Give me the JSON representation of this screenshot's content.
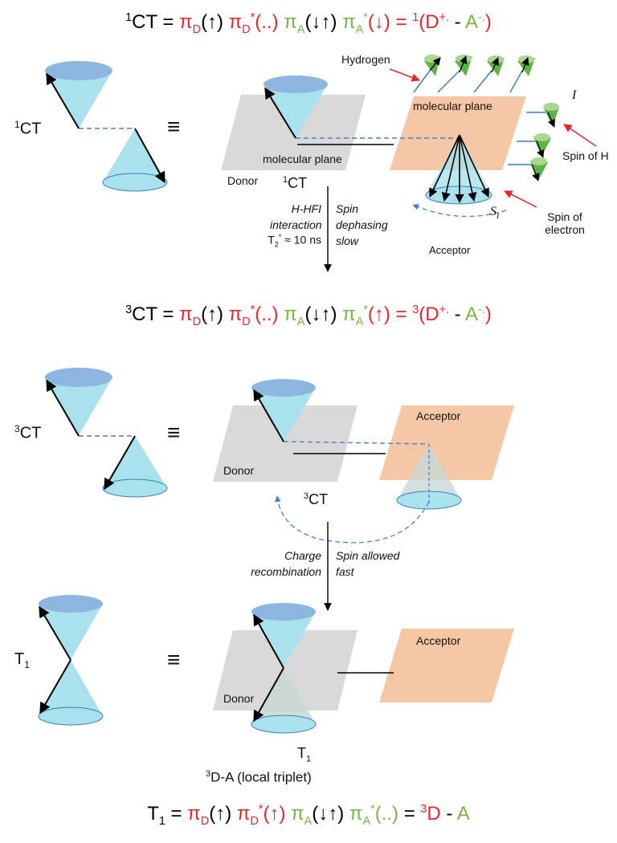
{
  "equations": {
    "singlet_ct": {
      "lhs_sup": "1",
      "lhs": "CT",
      "eq": " = ",
      "piD": "π",
      "subD": "D",
      "arrowUp": "(↑)",
      "piDs": " π",
      "subDs": "D",
      "star": "*",
      "dots": "(..)",
      "piA": " π",
      "subA": "A",
      "downUp": "(↓↑)",
      "piAs": " π",
      "subAs": "A",
      "starA": "*",
      "arrowDown": "(↓)",
      "eq2": " = ",
      "sup2": "1",
      "dplus": "(D",
      "dplus_sup": "+.",
      "dash": " - ",
      "aminus": "A",
      "aminus_sup": "-.",
      "close": ")"
    },
    "triplet_ct": {
      "lhs_sup": "3",
      "lhs": "CT",
      "eq": " = ",
      "piD": "π",
      "subD": "D",
      "arrowUp": "(↑)",
      "piDs": " π",
      "subDs": "D",
      "star": "*",
      "dots": "(..)",
      "piA": " π",
      "subA": "A",
      "downUp": "(↓↑)",
      "piAs": " π",
      "subAs": "A",
      "starA": "*",
      "arrowUp2": "(↑)",
      "eq2": " = ",
      "sup2": "3",
      "dplus": "(D",
      "dplus_sup": "+.",
      "dash": " - ",
      "aminus": "A",
      "aminus_sup": "-.",
      "close": ")"
    },
    "t1": {
      "lhs": "T",
      "lhs_sub": "1",
      "eq": " = ",
      "piD": "π",
      "subD": "D",
      "arrowUp": "(↑)",
      "piDs": " π",
      "subDs": "D",
      "star": "*",
      "arrowUp2": "(↑)",
      "piA": " π",
      "subA": "A",
      "downUp": "(↓↑)",
      "piAs": " π",
      "subAs": "A",
      "starA": "*",
      "dots": "(..)",
      "eq2": " = ",
      "sup2": "3",
      "d": "D",
      "dash": " - ",
      "a": "A"
    }
  },
  "panel1": {
    "left_label_sup": "1",
    "left_label": "CT",
    "hydrogen": "Hydrogen",
    "molecular_plane_right": "molecular plane",
    "molecular_plane_left": "molecular plane",
    "donor": "Donor",
    "state_sup": "1",
    "state": "CT",
    "nuclear_spin": "I",
    "spin_of_h": "Spin of H",
    "electron_spin": "S",
    "electron_spin_sub": "I",
    "spin_of_electron_1": "Spin of",
    "spin_of_electron_2": "electron",
    "acceptor": "Acceptor"
  },
  "transition1": {
    "left_1": "H-HFI",
    "left_2": "interaction",
    "left_3_T": "T",
    "left_3_sub": "2",
    "left_3_sup": "*",
    "left_3_rest": " ≈ 10 ns",
    "right_1": "Spin",
    "right_2": "dephasing",
    "right_3": "slow"
  },
  "panel2": {
    "left_label_sup": "3",
    "left_label": "CT",
    "donor": "Donor",
    "acceptor": "Acceptor",
    "state_sup": "3",
    "state": "CT"
  },
  "transition2": {
    "left_1": "Charge",
    "left_2": "recombination",
    "right_1": "Spin allowed",
    "right_2": "fast"
  },
  "panel3": {
    "left_label": "T",
    "left_label_sub": "1",
    "donor": "Donor",
    "acceptor": "Acceptor",
    "state": "T",
    "state_sub": "1",
    "local_sup": "3",
    "local": "D-A (local triplet)"
  },
  "equiv_symbol": "≡",
  "colors": {
    "cone": "#a9e1ec",
    "cone_top": "#8ab6e0",
    "donor_plane": "#d9d9d9",
    "acceptor_plane": "#f5c7a5",
    "red": "#e8262b",
    "green": "#77b843",
    "blue_dash": "#4a7fd1"
  }
}
